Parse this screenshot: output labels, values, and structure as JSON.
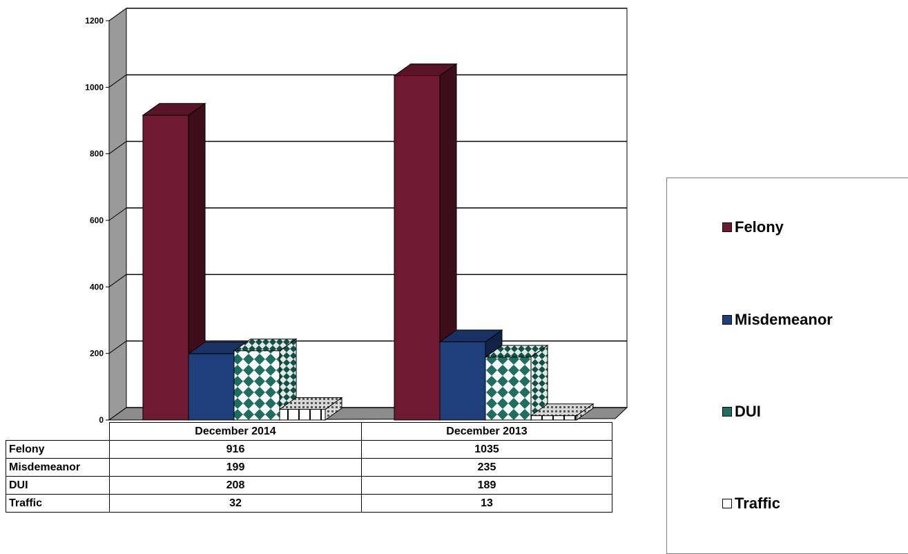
{
  "chart_data": {
    "type": "bar",
    "categories": [
      "December 2014",
      "December 2013"
    ],
    "series": [
      {
        "name": "Felony",
        "values": [
          916,
          1035
        ],
        "color": "#6e1a32"
      },
      {
        "name": "Misdemeanor",
        "values": [
          199,
          235
        ],
        "color": "#1f3f7a"
      },
      {
        "name": "DUI",
        "values": [
          208,
          189
        ],
        "color": "#1c6e5e"
      },
      {
        "name": "Traffic",
        "values": [
          32,
          13
        ],
        "color": "#ffffff"
      }
    ],
    "ylim": [
      0,
      1200
    ],
    "yticks": [
      0,
      200,
      400,
      600,
      800,
      1000,
      1200
    ],
    "grid": true,
    "legend": "right",
    "three_d": true,
    "data_table": true
  },
  "table": {
    "headers": [
      "December 2014",
      "December 2013"
    ],
    "rows": [
      {
        "label": "Felony",
        "values": [
          "916",
          "1035"
        ]
      },
      {
        "label": "Misdemeanor",
        "values": [
          "199",
          "235"
        ]
      },
      {
        "label": "DUI",
        "values": [
          "208",
          "189"
        ]
      },
      {
        "label": "Traffic",
        "values": [
          "32",
          "13"
        ]
      }
    ]
  }
}
